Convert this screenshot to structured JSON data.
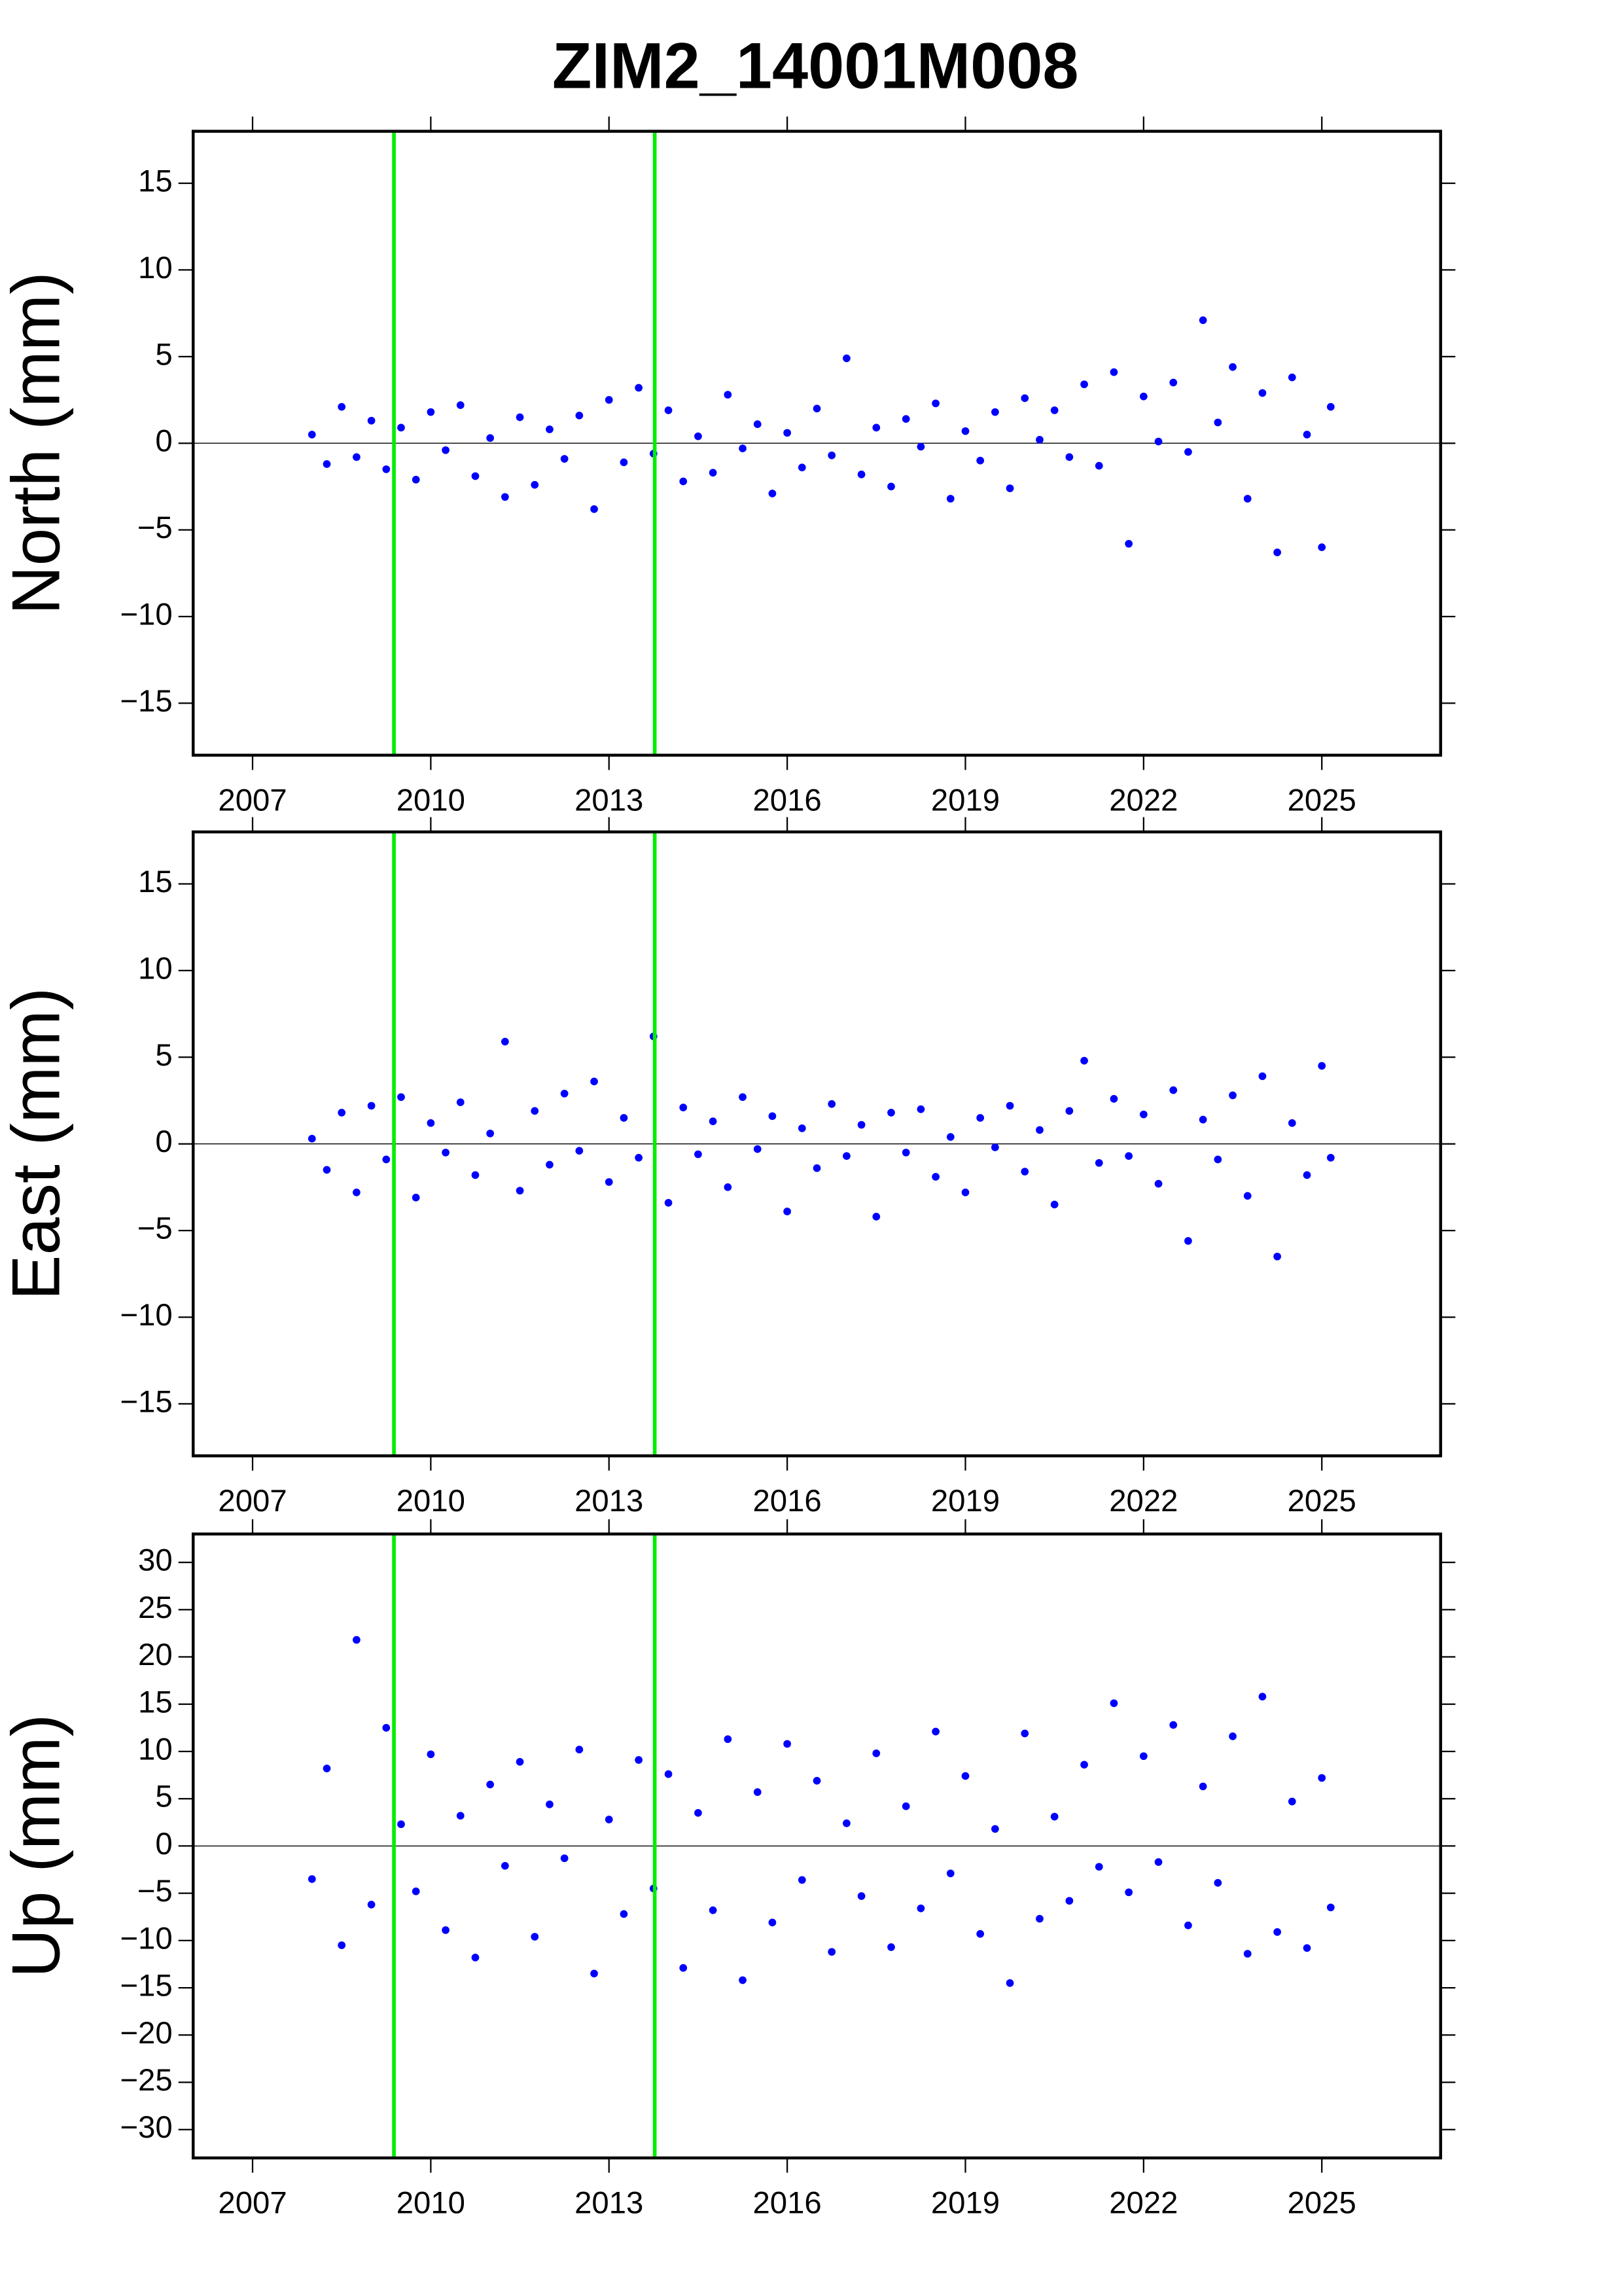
{
  "title": "ZIM2_14001M008",
  "chart_data": [
    {
      "type": "scatter",
      "ylabel": "North (mm)",
      "color": "#0000ff",
      "vline_color": "#00ee00",
      "vlines": [
        2009.38,
        2013.77
      ],
      "zero_line": true,
      "xlim": [
        2006,
        2027
      ],
      "xticks": [
        2007,
        2010,
        2013,
        2016,
        2019,
        2022,
        2025
      ],
      "ylim": [
        -18,
        18
      ],
      "yticks": [
        {
          "value": -15,
          "label": "−15"
        },
        {
          "value": -10,
          "label": "−10"
        },
        {
          "value": -5,
          "label": "−5"
        },
        0,
        5,
        10,
        15
      ],
      "x": [
        2008.0,
        2008.25,
        2008.5,
        2008.75,
        2009.0,
        2009.25,
        2009.5,
        2009.75,
        2010.0,
        2010.25,
        2010.5,
        2010.75,
        2011.0,
        2011.25,
        2011.5,
        2011.75,
        2012.0,
        2012.25,
        2012.5,
        2012.75,
        2013.0,
        2013.25,
        2013.5,
        2013.75,
        2014.0,
        2014.25,
        2014.5,
        2014.75,
        2015.0,
        2015.25,
        2015.5,
        2015.75,
        2016.0,
        2016.25,
        2016.5,
        2016.75,
        2017.0,
        2017.25,
        2017.5,
        2017.75,
        2018.0,
        2018.25,
        2018.5,
        2018.75,
        2019.0,
        2019.25,
        2019.5,
        2019.75,
        2020.0,
        2020.25,
        2020.5,
        2020.75,
        2021.0,
        2021.25,
        2021.5,
        2021.75,
        2022.0,
        2022.25,
        2022.5,
        2022.75,
        2023.0,
        2023.25,
        2023.5,
        2023.75,
        2024.0,
        2024.25,
        2024.5,
        2024.75,
        2025.0,
        2025.15
      ],
      "values": [
        0.5,
        -1.2,
        2.1,
        -0.8,
        1.3,
        -1.5,
        0.9,
        -2.1,
        1.8,
        -0.4,
        2.2,
        -1.9,
        0.3,
        -3.1,
        1.5,
        -2.4,
        0.8,
        -0.9,
        1.6,
        -3.8,
        2.5,
        -1.1,
        3.2,
        -0.6,
        1.9,
        -2.2,
        0.4,
        -1.7,
        2.8,
        -0.3,
        1.1,
        -2.9,
        0.6,
        -1.4,
        2.0,
        -0.7,
        4.9,
        -1.8,
        0.9,
        -2.5,
        1.4,
        -0.2,
        2.3,
        -3.2,
        0.7,
        -1.0,
        1.8,
        -2.6,
        2.6,
        0.2,
        1.9,
        -0.8,
        3.4,
        -1.3,
        4.1,
        -5.8,
        2.7,
        0.1,
        3.5,
        -0.5,
        7.1,
        1.2,
        4.4,
        -3.2,
        2.9,
        -6.3,
        3.8,
        0.5,
        -6.0,
        2.1
      ]
    },
    {
      "type": "scatter",
      "ylabel": "East (mm)",
      "color": "#0000ff",
      "vline_color": "#00ee00",
      "vlines": [
        2009.38,
        2013.77
      ],
      "zero_line": true,
      "xlim": [
        2006,
        2027
      ],
      "xticks": [
        2007,
        2010,
        2013,
        2016,
        2019,
        2022,
        2025
      ],
      "ylim": [
        -18,
        18
      ],
      "yticks": [
        {
          "value": -15,
          "label": "−15"
        },
        {
          "value": -10,
          "label": "−10"
        },
        {
          "value": -5,
          "label": "−5"
        },
        0,
        5,
        10,
        15
      ],
      "x": [
        2008.0,
        2008.25,
        2008.5,
        2008.75,
        2009.0,
        2009.25,
        2009.5,
        2009.75,
        2010.0,
        2010.25,
        2010.5,
        2010.75,
        2011.0,
        2011.25,
        2011.5,
        2011.75,
        2012.0,
        2012.25,
        2012.5,
        2012.75,
        2013.0,
        2013.25,
        2013.5,
        2013.75,
        2014.0,
        2014.25,
        2014.5,
        2014.75,
        2015.0,
        2015.25,
        2015.5,
        2015.75,
        2016.0,
        2016.25,
        2016.5,
        2016.75,
        2017.0,
        2017.25,
        2017.5,
        2017.75,
        2018.0,
        2018.25,
        2018.5,
        2018.75,
        2019.0,
        2019.25,
        2019.5,
        2019.75,
        2020.0,
        2020.25,
        2020.5,
        2020.75,
        2021.0,
        2021.25,
        2021.5,
        2021.75,
        2022.0,
        2022.25,
        2022.5,
        2022.75,
        2023.0,
        2023.25,
        2023.5,
        2023.75,
        2024.0,
        2024.25,
        2024.5,
        2024.75,
        2025.0,
        2025.15
      ],
      "values": [
        0.3,
        -1.5,
        1.8,
        -2.8,
        2.2,
        -0.9,
        2.7,
        -3.1,
        1.2,
        -0.5,
        2.4,
        -1.8,
        0.6,
        5.9,
        -2.7,
        1.9,
        -1.2,
        2.9,
        -0.4,
        3.6,
        -2.2,
        1.5,
        -0.8,
        6.2,
        -3.4,
        2.1,
        -0.6,
        1.3,
        -2.5,
        2.7,
        -0.3,
        1.6,
        -3.9,
        0.9,
        -1.4,
        2.3,
        -0.7,
        1.1,
        -4.2,
        1.8,
        -0.5,
        2.0,
        -1.9,
        0.4,
        -2.8,
        1.5,
        -0.2,
        2.2,
        -1.6,
        0.8,
        -3.5,
        1.9,
        4.8,
        -1.1,
        2.6,
        -0.7,
        1.7,
        -2.3,
        3.1,
        -5.6,
        1.4,
        -0.9,
        2.8,
        -3.0,
        3.9,
        -6.5,
        1.2,
        -1.8,
        4.5,
        -0.8
      ]
    },
    {
      "type": "scatter",
      "ylabel": "Up (mm)",
      "color": "#0000ff",
      "vline_color": "#00ee00",
      "vlines": [
        2009.38,
        2013.77
      ],
      "zero_line": true,
      "xlim": [
        2006,
        2027
      ],
      "xticks": [
        2007,
        2010,
        2013,
        2016,
        2019,
        2022,
        2025
      ],
      "ylim": [
        -33,
        33
      ],
      "yticks": [
        {
          "value": -30,
          "label": "−30"
        },
        {
          "value": -25,
          "label": "−25"
        },
        {
          "value": -20,
          "label": "−20"
        },
        {
          "value": -15,
          "label": "−15"
        },
        {
          "value": -10,
          "label": "−10"
        },
        {
          "value": -5,
          "label": "−5"
        },
        0,
        5,
        10,
        15,
        20,
        25,
        30
      ],
      "x": [
        2008.0,
        2008.25,
        2008.5,
        2008.75,
        2009.0,
        2009.25,
        2009.5,
        2009.75,
        2010.0,
        2010.25,
        2010.5,
        2010.75,
        2011.0,
        2011.25,
        2011.5,
        2011.75,
        2012.0,
        2012.25,
        2012.5,
        2012.75,
        2013.0,
        2013.25,
        2013.5,
        2013.75,
        2014.0,
        2014.25,
        2014.5,
        2014.75,
        2015.0,
        2015.25,
        2015.5,
        2015.75,
        2016.0,
        2016.25,
        2016.5,
        2016.75,
        2017.0,
        2017.25,
        2017.5,
        2017.75,
        2018.0,
        2018.25,
        2018.5,
        2018.75,
        2019.0,
        2019.25,
        2019.5,
        2019.75,
        2020.0,
        2020.25,
        2020.5,
        2020.75,
        2021.0,
        2021.25,
        2021.5,
        2021.75,
        2022.0,
        2022.25,
        2022.5,
        2022.75,
        2023.0,
        2023.25,
        2023.5,
        2023.75,
        2024.0,
        2024.25,
        2024.5,
        2024.75,
        2025.0,
        2025.15
      ],
      "values": [
        -3.5,
        8.2,
        -10.5,
        21.8,
        -6.2,
        12.5,
        2.3,
        -4.8,
        9.7,
        -8.9,
        3.2,
        -11.8,
        6.5,
        -2.1,
        8.9,
        -9.6,
        4.4,
        -1.3,
        10.2,
        -13.5,
        2.8,
        -7.2,
        9.1,
        -4.5,
        7.6,
        -12.9,
        3.5,
        -6.8,
        11.3,
        -14.2,
        5.7,
        -8.1,
        10.8,
        -3.6,
        6.9,
        -11.2,
        2.4,
        -5.3,
        9.8,
        -10.7,
        4.2,
        -6.6,
        12.1,
        -2.9,
        7.4,
        -9.3,
        1.8,
        -14.5,
        11.9,
        -7.7,
        3.1,
        -5.8,
        8.6,
        -2.2,
        15.1,
        -4.9,
        9.5,
        -1.7,
        12.8,
        -8.4,
        6.3,
        -3.9,
        11.6,
        -11.4,
        15.8,
        -9.1,
        4.7,
        -10.8,
        7.2,
        -6.5
      ]
    }
  ]
}
